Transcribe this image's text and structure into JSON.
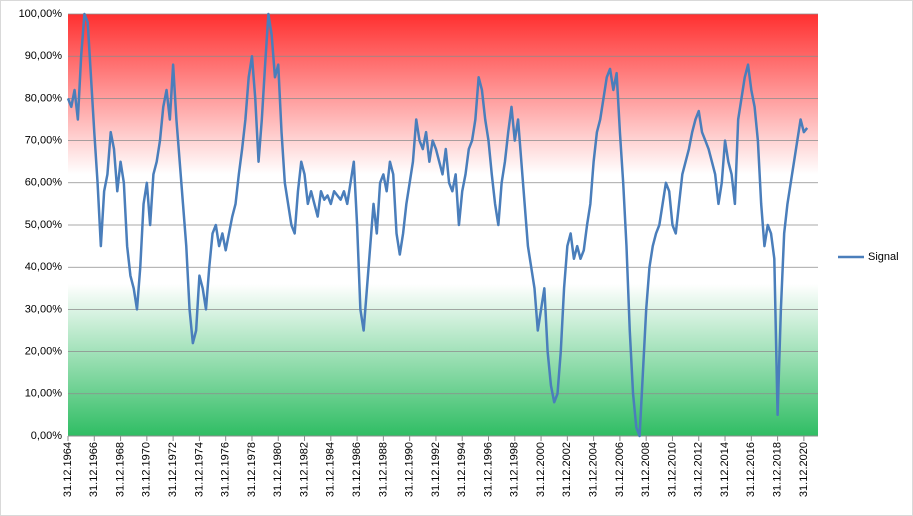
{
  "chart_data": {
    "type": "line",
    "categories": [
      "31.12.1964",
      null,
      null,
      null,
      null,
      null,
      null,
      null,
      "31.12.1966",
      null,
      null,
      null,
      null,
      null,
      null,
      null,
      "31.12.1968",
      null,
      null,
      null,
      null,
      null,
      null,
      null,
      "31.12.1970",
      null,
      null,
      null,
      null,
      null,
      null,
      null,
      "31.12.1972",
      null,
      null,
      null,
      null,
      null,
      null,
      null,
      "31.12.1974",
      null,
      null,
      null,
      null,
      null,
      null,
      null,
      "31.12.1976",
      null,
      null,
      null,
      null,
      null,
      null,
      null,
      "31.12.1978",
      null,
      null,
      null,
      null,
      null,
      null,
      null,
      "31.12.1980",
      null,
      null,
      null,
      null,
      null,
      null,
      null,
      "31.12.1982",
      null,
      null,
      null,
      null,
      null,
      null,
      null,
      "31.12.1984",
      null,
      null,
      null,
      null,
      null,
      null,
      null,
      "31.12.1986",
      null,
      null,
      null,
      null,
      null,
      null,
      null,
      "31.12.1988",
      null,
      null,
      null,
      null,
      null,
      null,
      null,
      "31.12.1990",
      null,
      null,
      null,
      null,
      null,
      null,
      null,
      "31.12.1992",
      null,
      null,
      null,
      null,
      null,
      null,
      null,
      "31.12.1994",
      null,
      null,
      null,
      null,
      null,
      null,
      null,
      "31.12.1996",
      null,
      null,
      null,
      null,
      null,
      null,
      null,
      "31.12.1998",
      null,
      null,
      null,
      null,
      null,
      null,
      null,
      "31.12.2000",
      null,
      null,
      null,
      null,
      null,
      null,
      null,
      "31.12.2002",
      null,
      null,
      null,
      null,
      null,
      null,
      null,
      "31.12.2004",
      null,
      null,
      null,
      null,
      null,
      null,
      null,
      "31.12.2006",
      null,
      null,
      null,
      null,
      null,
      null,
      null,
      "31.12.2008",
      null,
      null,
      null,
      null,
      null,
      null,
      null,
      "31.12.2010",
      null,
      null,
      null,
      null,
      null,
      null,
      null,
      "31.12.2012",
      null,
      null,
      null,
      null,
      null,
      null,
      null,
      "31.12.2014",
      null,
      null,
      null,
      null,
      null,
      null,
      null,
      "31.12.2016",
      null,
      null,
      null,
      null,
      null,
      null,
      null,
      "31.12.2018",
      null,
      null,
      null,
      null,
      null,
      null,
      null,
      "31.12.2020",
      null
    ],
    "series": [
      {
        "name": "Signal",
        "color": "#4a7ebb",
        "values": [
          80,
          78,
          82,
          75,
          90,
          100,
          98,
          85,
          72,
          60,
          45,
          58,
          62,
          72,
          68,
          58,
          65,
          60,
          45,
          38,
          35,
          30,
          40,
          55,
          60,
          50,
          62,
          65,
          70,
          78,
          82,
          75,
          88,
          75,
          65,
          55,
          45,
          30,
          22,
          25,
          38,
          35,
          30,
          40,
          48,
          50,
          45,
          48,
          44,
          48,
          52,
          55,
          62,
          68,
          75,
          85,
          90,
          80,
          65,
          75,
          88,
          100,
          95,
          85,
          88,
          72,
          60,
          55,
          50,
          48,
          58,
          65,
          62,
          55,
          58,
          55,
          52,
          58,
          56,
          57,
          55,
          58,
          57,
          56,
          58,
          55,
          60,
          65,
          50,
          30,
          25,
          35,
          45,
          55,
          48,
          60,
          62,
          58,
          65,
          62,
          48,
          43,
          48,
          55,
          60,
          65,
          75,
          70,
          68,
          72,
          65,
          70,
          68,
          65,
          62,
          68,
          60,
          58,
          62,
          50,
          58,
          62,
          68,
          70,
          75,
          85,
          82,
          75,
          70,
          62,
          55,
          50,
          60,
          65,
          72,
          78,
          70,
          75,
          65,
          55,
          45,
          40,
          35,
          25,
          30,
          35,
          20,
          12,
          8,
          10,
          20,
          35,
          45,
          48,
          42,
          45,
          42,
          44,
          50,
          55,
          65,
          72,
          75,
          80,
          85,
          87,
          82,
          86,
          72,
          60,
          45,
          25,
          10,
          2,
          0,
          15,
          30,
          40,
          45,
          48,
          50,
          55,
          60,
          58,
          50,
          48,
          55,
          62,
          65,
          68,
          72,
          75,
          77,
          72,
          70,
          68,
          65,
          62,
          55,
          60,
          70,
          65,
          62,
          55,
          75,
          80,
          85,
          88,
          82,
          78,
          70,
          55,
          45,
          50,
          48,
          42,
          5,
          30,
          48,
          55,
          60,
          65,
          70,
          75,
          72,
          73
        ]
      }
    ],
    "ylim": [
      0,
      100
    ],
    "yticks": [
      {
        "value": 0,
        "label": "0,00%"
      },
      {
        "value": 10,
        "label": "10,00%"
      },
      {
        "value": 20,
        "label": "20,00%"
      },
      {
        "value": 30,
        "label": "30,00%"
      },
      {
        "value": 40,
        "label": "40,00%"
      },
      {
        "value": 50,
        "label": "50,00%"
      },
      {
        "value": 60,
        "label": "60,00%"
      },
      {
        "value": 70,
        "label": "70,00%"
      },
      {
        "value": 80,
        "label": "80,00%"
      },
      {
        "value": 90,
        "label": "90,00%"
      },
      {
        "value": 100,
        "label": "100,00%"
      }
    ],
    "grid": true,
    "legend": "right"
  }
}
